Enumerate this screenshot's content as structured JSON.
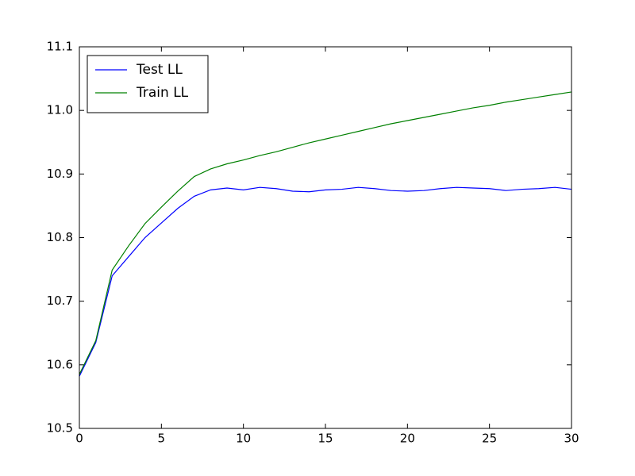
{
  "chart_data": {
    "type": "line",
    "x": [
      0,
      1,
      2,
      3,
      4,
      5,
      6,
      7,
      8,
      9,
      10,
      11,
      12,
      13,
      14,
      15,
      16,
      17,
      18,
      19,
      20,
      21,
      22,
      23,
      24,
      25,
      26,
      27,
      28,
      29,
      30
    ],
    "series": [
      {
        "name": "Test LL",
        "color": "#0000ff",
        "values": [
          10.582,
          10.635,
          10.74,
          10.77,
          10.8,
          10.823,
          10.846,
          10.865,
          10.875,
          10.878,
          10.875,
          10.879,
          10.877,
          10.873,
          10.872,
          10.875,
          10.876,
          10.879,
          10.877,
          10.874,
          10.873,
          10.874,
          10.877,
          10.879,
          10.878,
          10.877,
          10.874,
          10.876,
          10.877,
          10.879,
          10.876
        ]
      },
      {
        "name": "Train LL",
        "color": "#008000",
        "values": [
          10.585,
          10.638,
          10.749,
          10.787,
          10.822,
          10.848,
          10.873,
          10.896,
          10.908,
          10.916,
          10.922,
          10.929,
          10.935,
          10.942,
          10.949,
          10.955,
          10.961,
          10.967,
          10.973,
          10.979,
          10.984,
          10.989,
          10.994,
          10.999,
          11.004,
          11.008,
          11.013,
          11.017,
          11.021,
          11.025,
          11.029
        ]
      }
    ],
    "xlim": [
      0,
      30
    ],
    "xticks": [
      0,
      5,
      10,
      15,
      20,
      25,
      30
    ],
    "ylim": [
      10.5,
      11.1
    ],
    "yticks": [
      10.5,
      10.6,
      10.7,
      10.8,
      10.9,
      {
        "value": 11,
        "label": "11.0"
      },
      11.1
    ],
    "grid": false,
    "legend": "upper-left"
  }
}
